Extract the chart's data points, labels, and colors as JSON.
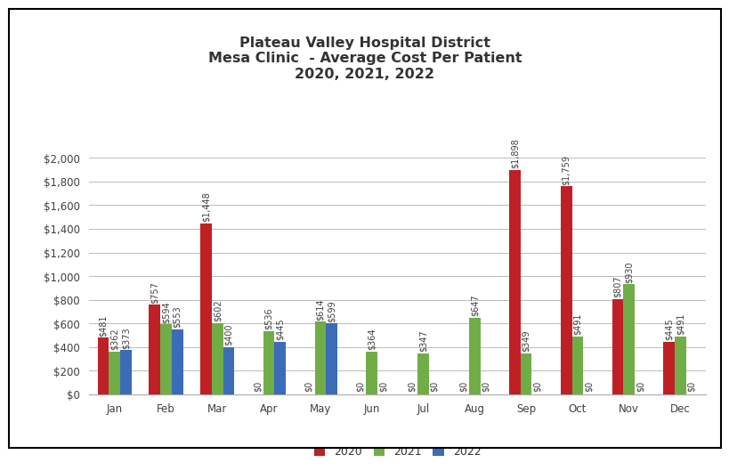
{
  "title": "Plateau Valley Hospital District\nMesa Clinic  - Average Cost Per Patient\n2020, 2021, 2022",
  "months": [
    "Jan",
    "Feb",
    "Mar",
    "Apr",
    "May",
    "Jun",
    "Jul",
    "Aug",
    "Sep",
    "Oct",
    "Nov",
    "Dec"
  ],
  "values_2020": [
    481,
    757,
    1448,
    0,
    0,
    0,
    0,
    0,
    1898,
    1759,
    807,
    445
  ],
  "values_2021": [
    362,
    594,
    602,
    536,
    614,
    364,
    347,
    647,
    349,
    491,
    930,
    491
  ],
  "values_2022": [
    373,
    553,
    400,
    445,
    599,
    0,
    0,
    0,
    0,
    0,
    0,
    0
  ],
  "color_2020": "#BE2026",
  "color_2021": "#70AD47",
  "color_2022": "#3B6CB7",
  "bar_width": 0.22,
  "ylim": [
    0,
    2200
  ],
  "yticks": [
    0,
    200,
    400,
    600,
    800,
    1000,
    1200,
    1400,
    1600,
    1800,
    2000
  ],
  "legend_labels": [
    "2020",
    "2021",
    "2022"
  ],
  "background_color": "#FFFFFF",
  "title_fontsize": 11.5,
  "label_fontsize": 7,
  "axis_fontsize": 8.5
}
